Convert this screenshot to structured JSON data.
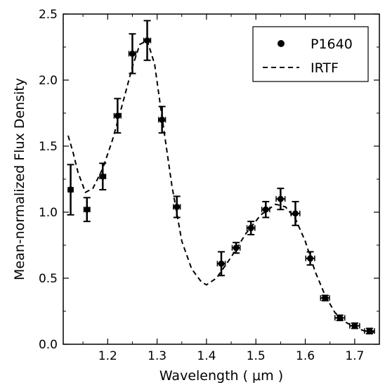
{
  "chart_data": {
    "type": "scatter",
    "xlabel": "Wavelength ( μm )",
    "ylabel": "Mean-normalized Flux Density",
    "xlim": [
      1.11,
      1.75
    ],
    "ylim": [
      0.0,
      2.5
    ],
    "x_ticks": [
      1.2,
      1.3,
      1.4,
      1.5,
      1.6,
      1.7
    ],
    "x_tick_labels": [
      "1.2",
      "1.3",
      "1.4",
      "1.5",
      "1.6",
      "1.7"
    ],
    "y_ticks": [
      0.0,
      0.5,
      1.0,
      1.5,
      2.0,
      2.5
    ],
    "y_tick_labels": [
      "0.0",
      "0.5",
      "1.0",
      "1.5",
      "2.0",
      "2.5"
    ],
    "grid": false,
    "legend_position": "top-right",
    "series": [
      {
        "name": "P1640",
        "kind": "points-with-errorbars",
        "color": "#000000",
        "x": [
          1.125,
          1.158,
          1.19,
          1.22,
          1.25,
          1.28,
          1.31,
          1.34,
          1.43,
          1.46,
          1.49,
          1.52,
          1.55,
          1.58,
          1.61,
          1.64,
          1.67,
          1.7,
          1.73
        ],
        "y": [
          1.17,
          1.02,
          1.27,
          1.73,
          2.2,
          2.3,
          1.7,
          1.04,
          0.61,
          0.73,
          0.88,
          1.02,
          1.1,
          0.99,
          0.65,
          0.35,
          0.2,
          0.14,
          0.1
        ],
        "y_err": [
          0.19,
          0.09,
          0.1,
          0.13,
          0.15,
          0.15,
          0.1,
          0.08,
          0.09,
          0.04,
          0.05,
          0.06,
          0.08,
          0.09,
          0.05,
          0.02,
          0.02,
          0.02,
          0.02
        ],
        "x_err": [
          0.005,
          0.006,
          0.006,
          0.007,
          0.007,
          0.007,
          0.007,
          0.007,
          0.008,
          0.008,
          0.008,
          0.008,
          0.009,
          0.009,
          0.009,
          0.009,
          0.01,
          0.01,
          0.01
        ]
      },
      {
        "name": "IRTF",
        "kind": "dashed-line",
        "color": "#000000",
        "x": [
          1.12,
          1.13,
          1.14,
          1.155,
          1.17,
          1.19,
          1.21,
          1.23,
          1.25,
          1.265,
          1.28,
          1.295,
          1.31,
          1.33,
          1.35,
          1.37,
          1.39,
          1.4,
          1.42,
          1.45,
          1.48,
          1.51,
          1.54,
          1.56,
          1.58,
          1.6,
          1.62,
          1.64,
          1.66,
          1.68,
          1.7,
          1.72,
          1.74
        ],
        "y": [
          1.58,
          1.45,
          1.3,
          1.15,
          1.18,
          1.33,
          1.55,
          1.82,
          2.1,
          2.27,
          2.3,
          2.12,
          1.72,
          1.2,
          0.78,
          0.57,
          0.47,
          0.45,
          0.5,
          0.66,
          0.84,
          0.98,
          1.06,
          1.04,
          0.95,
          0.78,
          0.55,
          0.37,
          0.24,
          0.17,
          0.13,
          0.1,
          0.09
        ]
      }
    ],
    "legend": [
      {
        "label": "P1640",
        "marker": "dot"
      },
      {
        "label": "IRTF",
        "marker": "dashed-line"
      }
    ]
  }
}
